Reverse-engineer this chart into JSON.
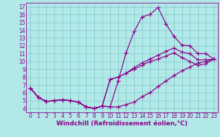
{
  "xlabel": "Windchill (Refroidissement éolien,°C)",
  "background_color": "#b3e8e8",
  "grid_color": "#7cc8c8",
  "line_color": "#880088",
  "spine_color": "#880088",
  "xlim": [
    -0.5,
    23.5
  ],
  "ylim": [
    3.5,
    17.5
  ],
  "xticks": [
    0,
    1,
    2,
    3,
    4,
    5,
    6,
    7,
    8,
    9,
    10,
    11,
    12,
    13,
    14,
    15,
    16,
    17,
    18,
    19,
    20,
    21,
    22,
    23
  ],
  "yticks": [
    4,
    5,
    6,
    7,
    8,
    9,
    10,
    11,
    12,
    13,
    14,
    15,
    16,
    17
  ],
  "series": [
    [
      6.6,
      5.4,
      4.9,
      5.0,
      5.1,
      5.0,
      4.8,
      4.2,
      4.0,
      4.3,
      4.2,
      7.5,
      11.1,
      13.8,
      15.7,
      16.0,
      16.9,
      14.8,
      13.2,
      12.1,
      12.0,
      11.0,
      11.0,
      10.3
    ],
    [
      6.6,
      5.4,
      4.9,
      5.0,
      5.1,
      5.0,
      4.8,
      4.2,
      4.0,
      4.3,
      7.7,
      8.0,
      8.5,
      9.2,
      9.8,
      10.3,
      10.8,
      11.3,
      11.7,
      11.2,
      11.0,
      10.2,
      10.2,
      10.3
    ],
    [
      6.6,
      5.4,
      4.9,
      5.0,
      5.1,
      5.0,
      4.8,
      4.2,
      4.0,
      4.3,
      7.7,
      8.0,
      8.5,
      9.0,
      9.5,
      10.0,
      10.3,
      10.7,
      11.1,
      10.5,
      10.0,
      9.5,
      9.7,
      10.3
    ],
    [
      6.6,
      5.4,
      4.9,
      5.0,
      5.1,
      5.0,
      4.8,
      4.2,
      4.0,
      4.3,
      4.2,
      4.2,
      4.5,
      4.8,
      5.5,
      6.0,
      6.8,
      7.5,
      8.2,
      8.8,
      9.3,
      9.8,
      10.0,
      10.3
    ]
  ],
  "fontsize_ticks": 5.5,
  "fontsize_xlabel": 6.5,
  "marker": "+",
  "markersize": 4.0,
  "linewidth": 0.9
}
